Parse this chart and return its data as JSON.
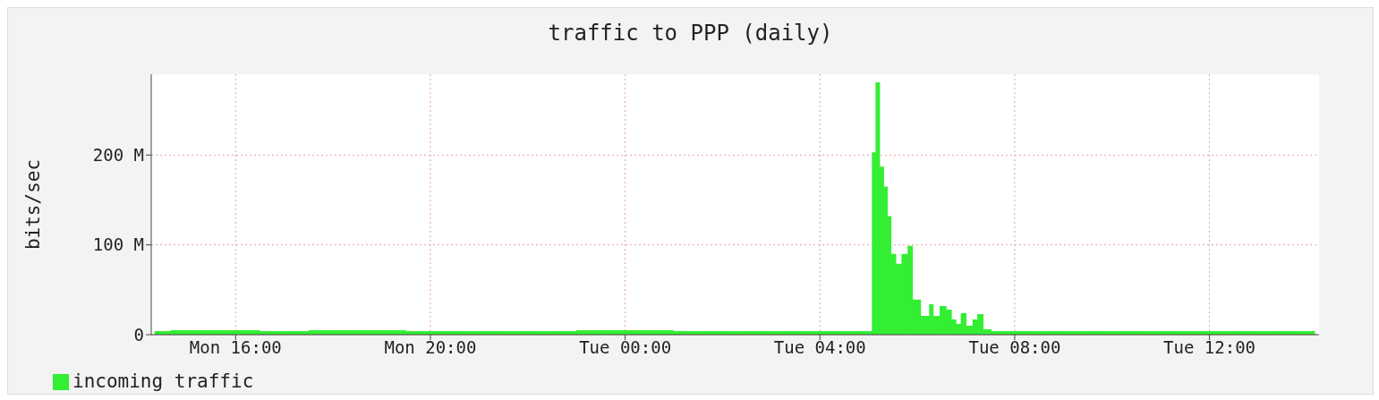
{
  "chart_data": {
    "type": "area",
    "title": "traffic to PPP (daily)",
    "ylabel": "bits/sec",
    "x": [
      "--03-16T14:20",
      "--03-16T15:00",
      "--03-16T16:00",
      "--03-16T17:00",
      "--03-16T18:00",
      "--03-16T19:00",
      "--03-16T20:00",
      "--03-16T22:00",
      "--03-17T00:00",
      "--03-17T02:00",
      "--03-17T04:00",
      "--03-17T05:03",
      "--03-17T05:05",
      "--03-17T05:12",
      "--03-17T05:16",
      "--03-17T05:22",
      "--03-17T05:25",
      "--03-17T05:31",
      "--03-17T05:37",
      "--03-17T05:44",
      "--03-17T05:52",
      "--03-17T05:57",
      "--03-17T06:12",
      "--03-17T06:17",
      "--03-17T06:23",
      "--03-17T06:32",
      "--03-17T06:40",
      "--03-17T06:45",
      "--03-17T06:51",
      "--03-17T06:56",
      "--03-17T07:05",
      "--03-17T07:11",
      "--03-17T07:17",
      "--03-17T07:26",
      "--03-17T07:37",
      "--03-17T08:00",
      "--03-17T10:00",
      "--03-17T12:00",
      "--03-17T14:10"
    ],
    "series": [
      {
        "name": "incoming traffic",
        "color": "#33ee33",
        "values": [
          4,
          5,
          5,
          4,
          5,
          5,
          4,
          4,
          5,
          4,
          4,
          4,
          203,
          281,
          187,
          165,
          132,
          90,
          79,
          90,
          99,
          39,
          21,
          34,
          21,
          32,
          28,
          17,
          12,
          24,
          10,
          17,
          23,
          6,
          4,
          4,
          4,
          4,
          4
        ]
      }
    ],
    "xlim": [
      "--03-16T14:16",
      "--03-17T14:15"
    ],
    "xticks": [
      {
        "value": "--03-16T16:00",
        "label": "Mon 16:00"
      },
      {
        "value": "--03-16T20:00",
        "label": "Mon 20:00"
      },
      {
        "value": "--03-17T00:00",
        "label": "Tue 00:00"
      },
      {
        "value": "--03-17T04:00",
        "label": "Tue 04:00"
      },
      {
        "value": "--03-17T08:00",
        "label": "Tue 08:00"
      },
      {
        "value": "--03-17T12:00",
        "label": "Tue 12:00"
      }
    ],
    "ylim": [
      0,
      290
    ],
    "yticks": [
      0,
      {
        "value": 100,
        "label": "100 M"
      },
      {
        "value": 200,
        "label": "200 M"
      }
    ],
    "grid": true,
    "legend": "bottom left"
  }
}
